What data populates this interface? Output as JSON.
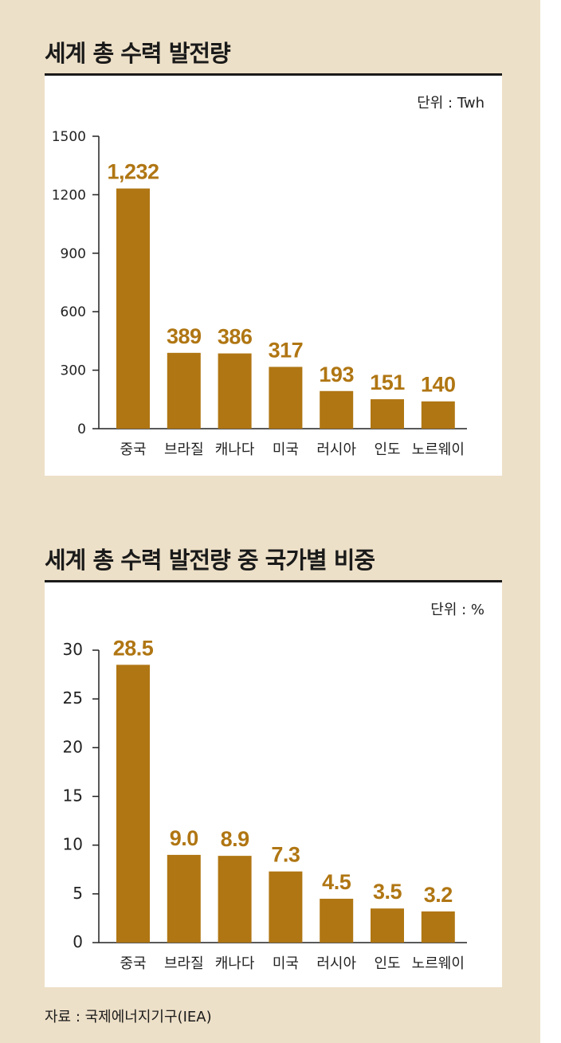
{
  "source": "자료 : 국제에너지기구(IEA)",
  "colors": {
    "bar": "#b07613",
    "axis": "#222222",
    "background": "#ede0c8",
    "panel": "#ffffff"
  },
  "chart_data": [
    {
      "type": "bar",
      "title": "세계 총 수력 발전량",
      "unit_label": "단위 : Twh",
      "categories": [
        "중국",
        "브라질",
        "캐나다",
        "미국",
        "러시아",
        "인도",
        "노르웨이"
      ],
      "values": [
        1232,
        389,
        386,
        317,
        193,
        151,
        140
      ],
      "value_labels": [
        "1,232",
        "389",
        "386",
        "317",
        "193",
        "151",
        "140"
      ],
      "yticks": [
        0,
        300,
        600,
        900,
        1200,
        1500
      ],
      "ylim": [
        0,
        1500
      ],
      "grid": false,
      "legend": "none"
    },
    {
      "type": "bar",
      "title": "세계 총 수력 발전량 중 국가별 비중",
      "unit_label": "단위 : %",
      "categories": [
        "중국",
        "브라질",
        "캐나다",
        "미국",
        "러시아",
        "인도",
        "노르웨이"
      ],
      "values": [
        28.5,
        9.0,
        8.9,
        7.3,
        4.5,
        3.5,
        3.2
      ],
      "value_labels": [
        "28.5",
        "9.0",
        "8.9",
        "7.3",
        "4.5",
        "3.5",
        "3.2"
      ],
      "yticks": [
        0,
        5,
        10,
        15,
        20,
        25,
        30
      ],
      "ylim": [
        0,
        30
      ],
      "grid": false,
      "legend": "none"
    }
  ]
}
